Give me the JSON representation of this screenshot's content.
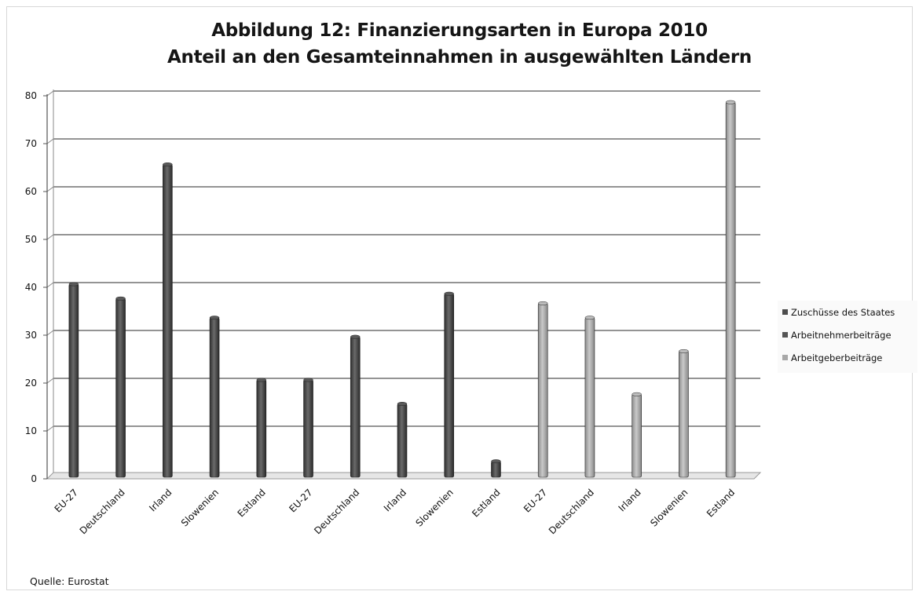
{
  "chart_data": {
    "type": "bar",
    "title": "Abbildung 12: Finanzierungsarten in Europa 2010",
    "subtitle": "Anteil an den Gesamteinnahmen in ausgewählten Ländern",
    "xlabel": "",
    "ylabel": "",
    "ylim": [
      0,
      80
    ],
    "yticks": [
      "0",
      "10",
      "20",
      "30",
      "40",
      "50",
      "60",
      "70",
      "80"
    ],
    "grid": true,
    "legend_position": "right",
    "categories": [
      "EU-27",
      "Deutschland",
      "Irland",
      "Slowenien",
      "Estland",
      "EU-27",
      "Deutschland",
      "Irland",
      "Slowenien",
      "Estland",
      "EU-27",
      "Deutschland",
      "Irland",
      "Slowenien",
      "Estland"
    ],
    "series": [
      {
        "name": "Zuschüsse des Staates",
        "color": "#4d4d4d",
        "values": [
          40,
          37,
          65,
          33,
          20,
          null,
          null,
          null,
          null,
          null,
          null,
          null,
          null,
          null,
          null
        ]
      },
      {
        "name": "Arbeitnehmerbeiträge",
        "color": "#555555",
        "values": [
          null,
          null,
          null,
          null,
          null,
          20,
          29,
          15,
          38,
          3,
          null,
          null,
          null,
          null,
          null
        ]
      },
      {
        "name": "Arbeitgeberbeiträge",
        "color": "#a8a8a8",
        "values": [
          null,
          null,
          null,
          null,
          null,
          null,
          null,
          null,
          null,
          null,
          36,
          33,
          17,
          26,
          78
        ]
      }
    ]
  },
  "legend": {
    "items": [
      {
        "label": "Zuschüsse des Staates",
        "color": "#4d4d4d"
      },
      {
        "label": "Arbeitnehmerbeiträge",
        "color": "#555555"
      },
      {
        "label": "Arbeitgeberbeiträge",
        "color": "#a8a8a8"
      }
    ]
  },
  "source": "Quelle: Eurostat"
}
